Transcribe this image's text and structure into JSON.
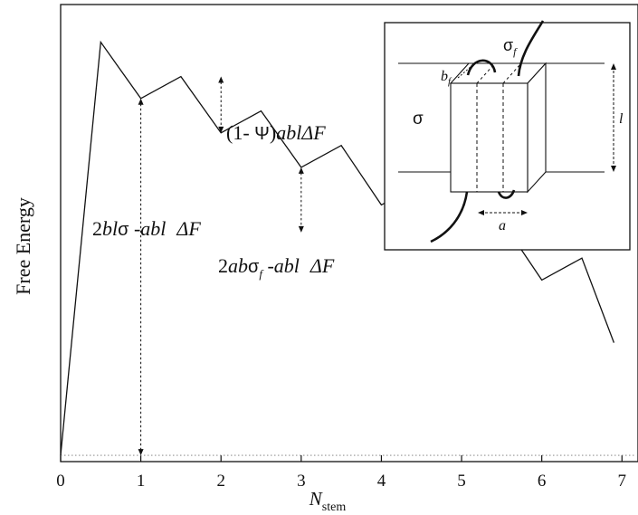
{
  "chart_data": {
    "type": "line",
    "xlabel": "N",
    "xlabel_sub": "stem",
    "ylabel": "Free Energy",
    "xlim": [
      0,
      7.2
    ],
    "ylim": [
      0,
      7.3
    ],
    "xticks": [
      "0",
      "1",
      "2",
      "3",
      "4",
      "5",
      "6",
      "7"
    ],
    "x": [
      0,
      0.5,
      1,
      1.5,
      2,
      2.5,
      3,
      3.5,
      4,
      4.5,
      5,
      5.5,
      6,
      6.5,
      6.9
    ],
    "y": [
      0.1,
      6.7,
      5.8,
      6.15,
      5.25,
      5.6,
      4.7,
      5.05,
      4.1,
      4.45,
      3.5,
      3.85,
      2.9,
      3.25,
      1.9
    ],
    "baseline": 0.1,
    "annotations": {
      "nucleation": {
        "at_x": 1,
        "pre": "2",
        "b": "b",
        "l": "l",
        "sigma": "σ",
        "sep": " -",
        "abl": "abl",
        "df": "ΔF"
      },
      "activation": {
        "at_x": 2,
        "pre": "(1- ",
        "psi": "Ψ",
        "close": ")",
        "abl": "abl",
        "df": "ΔF"
      },
      "step": {
        "at_x": 3,
        "pre": "2",
        "ab": "ab",
        "sigma": "σ",
        "sub": "f",
        "sep": " -",
        "abl": "abl",
        "df": "ΔF"
      }
    },
    "inset": {
      "sigma": "σ",
      "sigma_f": "σ",
      "sigma_f_sub": "f",
      "b": "b",
      "b_sub": "f",
      "l": "l",
      "a": "a"
    }
  }
}
